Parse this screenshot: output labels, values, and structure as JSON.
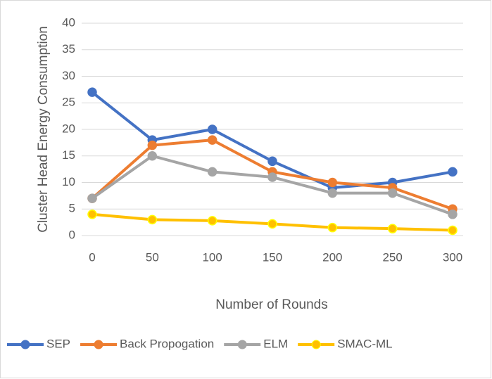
{
  "chart_data": {
    "type": "line",
    "x_label": "Number of Rounds",
    "y_label": "Cluster Head Energy Consumption",
    "x": [
      0,
      50,
      100,
      150,
      200,
      250,
      300
    ],
    "xlim": [
      0,
      300
    ],
    "xticks": [
      0,
      50,
      100,
      150,
      200,
      250,
      300
    ],
    "ylim": [
      0,
      40
    ],
    "yticks": [
      0,
      5,
      10,
      15,
      20,
      25,
      30,
      35,
      40
    ],
    "grid": true,
    "legend": "bottom",
    "series": [
      {
        "name": "SEP",
        "color": "#4472c4",
        "values": [
          27,
          18,
          20,
          14,
          9,
          10,
          12
        ]
      },
      {
        "name": "Back Propogation",
        "color": "#ed7d31",
        "values": [
          7,
          17,
          18,
          12,
          10,
          9,
          5
        ]
      },
      {
        "name": "ELM",
        "color": "#a5a5a5",
        "values": [
          7,
          15,
          12,
          11,
          8,
          8,
          4
        ]
      },
      {
        "name": "SMAC-ML",
        "color": "#ffc000",
        "values": [
          4,
          3,
          2.8,
          2.2,
          1.5,
          1.3,
          1
        ]
      }
    ]
  }
}
